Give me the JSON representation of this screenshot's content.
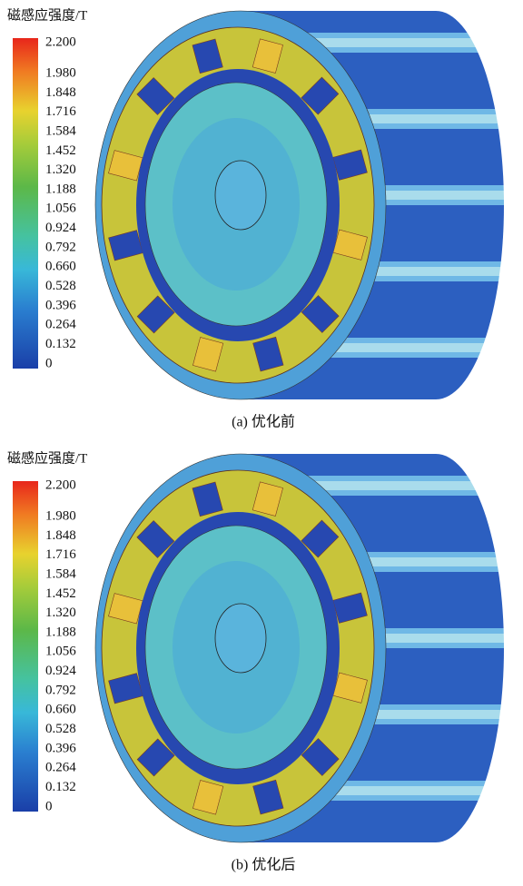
{
  "panels": [
    {
      "legend_title": "磁感应强度/T",
      "legend_ticks": [
        "2.200",
        "1.980",
        "1.848",
        "1.716",
        "1.584",
        "1.452",
        "1.320",
        "1.188",
        "1.056",
        "0.924",
        "0.792",
        "0.660",
        "0.528",
        "0.396",
        "0.264",
        "0.132",
        "0"
      ],
      "caption": "(a) 优化前"
    },
    {
      "legend_title": "磁感应强度/T",
      "legend_ticks": [
        "2.200",
        "1.980",
        "1.848",
        "1.716",
        "1.584",
        "1.452",
        "1.320",
        "1.188",
        "1.056",
        "0.924",
        "0.792",
        "0.660",
        "0.528",
        "0.396",
        "0.264",
        "0.132",
        "0"
      ],
      "caption": "(b) 优化后"
    }
  ]
}
